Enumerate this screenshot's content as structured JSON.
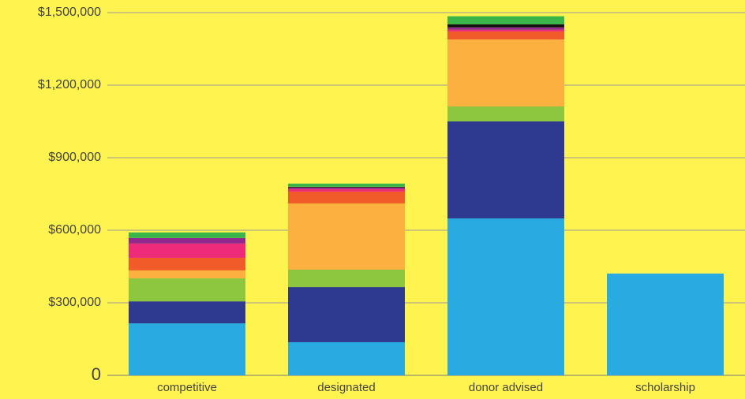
{
  "chart_data": {
    "type": "stacked_bar",
    "categories": [
      "competitive",
      "designated",
      "donor advised",
      "scholarship"
    ],
    "series": [
      {
        "color": "#29abe2",
        "values": [
          215000,
          137000,
          649000,
          421000
        ]
      },
      {
        "color": "#2e3a8f",
        "values": [
          91000,
          228000,
          401000,
          null
        ]
      },
      {
        "color": "#8dc63f",
        "values": [
          95000,
          72000,
          62000,
          null
        ]
      },
      {
        "color": "#fbb040",
        "values": [
          33000,
          274000,
          277000,
          null
        ]
      },
      {
        "color": "#f15a29",
        "values": [
          52000,
          49000,
          33000,
          null
        ]
      },
      {
        "color": "#ee2a7b",
        "values": [
          59000,
          10000,
          7000,
          null
        ]
      },
      {
        "color": "#92278f",
        "values": [
          23000,
          7000,
          10000,
          null
        ]
      },
      {
        "color": "#111111",
        "values": [
          null,
          3000,
          13000,
          null
        ]
      },
      {
        "color": "#39b54a",
        "values": [
          23000,
          13000,
          33000,
          null
        ]
      }
    ],
    "ylim": [
      0,
      1500000
    ],
    "yticks": [
      0,
      {
        "value": 300000,
        "label": "$300,000"
      },
      {
        "value": 600000,
        "label": "$600,000"
      },
      {
        "value": 900000,
        "label": "$900,000"
      },
      {
        "value": 1200000,
        "label": "$1,200,000"
      },
      {
        "value": 1500000,
        "label": "$1,500,000"
      }
    ],
    "grid": true
  }
}
